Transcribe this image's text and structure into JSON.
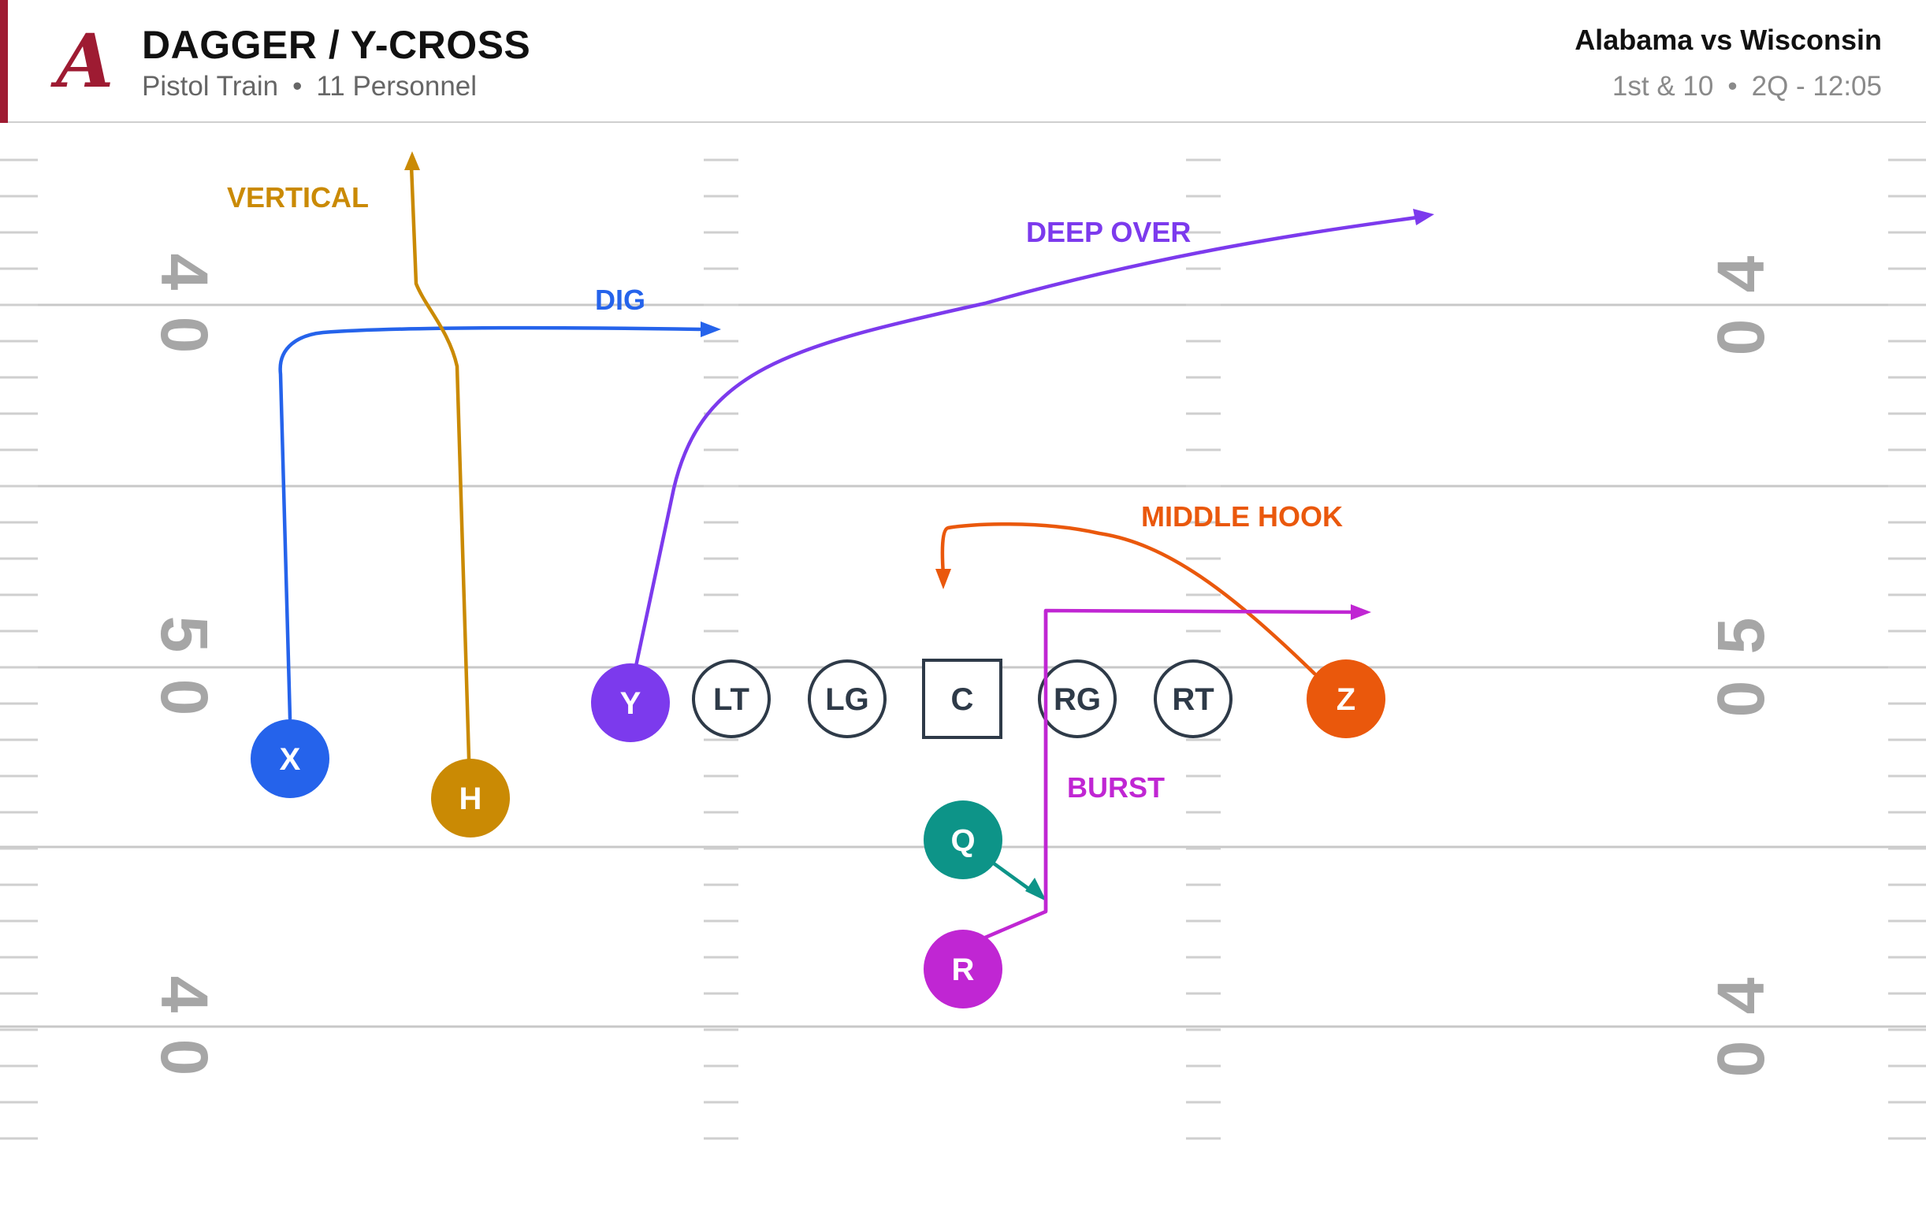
{
  "header": {
    "title": "DAGGER / Y-CROSS",
    "formation": "Pistol Train",
    "separator": "•",
    "personnel": "11 Personnel",
    "matchup": "Alabama vs Wisconsin",
    "down_distance": "1st & 10",
    "clock": "2Q - 12:05",
    "logo_letter": "A"
  },
  "colors": {
    "brand": "#9e1b32",
    "yard_line": "#c8c8c8",
    "yard_number": "#a6a6a6",
    "lineman": "#2e3a48",
    "x": "#2563eb",
    "h": "#ca8a04",
    "y": "#7c3aed",
    "z": "#ea580c",
    "q": "#0d9488",
    "r": "#c026d3"
  },
  "field": {
    "yard_numbers": {
      "left": [
        "4",
        "0",
        "5",
        "0",
        "4",
        "0"
      ],
      "right": [
        "4",
        "0",
        "5",
        "0",
        "4",
        "0"
      ]
    }
  },
  "players": {
    "x": "X",
    "h": "H",
    "y": "Y",
    "lt": "LT",
    "lg": "LG",
    "c": "C",
    "rg": "RG",
    "rt": "RT",
    "z": "Z",
    "q": "Q",
    "r": "R"
  },
  "routes": {
    "x": "DIG",
    "h": "VERTICAL",
    "y": "DEEP OVER",
    "z": "MIDDLE HOOK",
    "r": "BURST"
  }
}
